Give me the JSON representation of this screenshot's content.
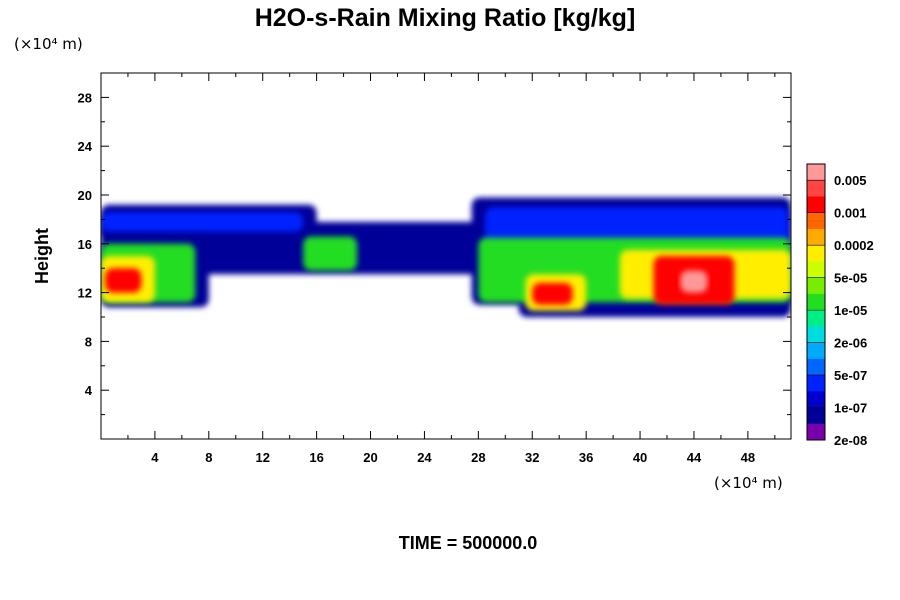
{
  "chart_data": {
    "type": "heatmap",
    "title": "H2O-s-Rain Mixing Ratio [kg/kg]",
    "xlabel": "",
    "ylabel": "Height",
    "x_unit": "(×10⁴ m)",
    "y_unit": "(×10⁴ m)",
    "xlim": [
      0,
      51.2
    ],
    "ylim": [
      0,
      30
    ],
    "x_ticks": [
      4,
      8,
      12,
      16,
      20,
      24,
      28,
      32,
      36,
      40,
      44,
      48
    ],
    "y_ticks": [
      4,
      8,
      12,
      16,
      20,
      24,
      28
    ],
    "grid": false,
    "colorbar": {
      "labels": [
        "0.005",
        "0.001",
        "0.0002",
        "5e-05",
        "1e-05",
        "2e-06",
        "5e-07",
        "1e-07",
        "2e-08"
      ],
      "colors_top_to_bottom": [
        "#ff9999",
        "#ff4444",
        "#ff0000",
        "#ff6600",
        "#ffaa00",
        "#ffee00",
        "#ccff00",
        "#77ee00",
        "#22dd22",
        "#00ee88",
        "#00dddd",
        "#00aaff",
        "#0066ff",
        "#0022ff",
        "#0000cc",
        "#000099",
        "#7700aa"
      ]
    },
    "field_regions": [
      {
        "level": 1,
        "x0": 0.0,
        "x1": 16.0,
        "y0": 16.5,
        "y1": 19.2
      },
      {
        "level": 1,
        "x0": 0.0,
        "x1": 8.0,
        "y0": 10.8,
        "y1": 17.5
      },
      {
        "level": 1,
        "x0": 5.5,
        "x1": 30.0,
        "y0": 13.5,
        "y1": 17.8
      },
      {
        "level": 1,
        "x0": 27.5,
        "x1": 51.2,
        "y0": 11.0,
        "y1": 19.8
      },
      {
        "level": 1,
        "x0": 31.0,
        "x1": 51.2,
        "y0": 10.0,
        "y1": 13.0
      },
      {
        "level": 3,
        "x0": 0.0,
        "x1": 15.0,
        "y0": 17.0,
        "y1": 18.6
      },
      {
        "level": 3,
        "x0": 28.5,
        "x1": 51.0,
        "y0": 15.5,
        "y1": 19.0
      },
      {
        "level": 8,
        "x0": 0.0,
        "x1": 7.0,
        "y0": 11.2,
        "y1": 16.0
      },
      {
        "level": 8,
        "x0": 15.0,
        "x1": 19.0,
        "y0": 13.8,
        "y1": 16.6
      },
      {
        "level": 8,
        "x0": 28.0,
        "x1": 51.2,
        "y0": 11.2,
        "y1": 16.5
      },
      {
        "level": 11,
        "x0": 38.5,
        "x1": 51.2,
        "y0": 11.5,
        "y1": 15.5
      },
      {
        "level": 11,
        "x0": 31.5,
        "x1": 36.0,
        "y0": 10.5,
        "y1": 13.5
      },
      {
        "level": 11,
        "x0": 0.0,
        "x1": 4.0,
        "y0": 11.2,
        "y1": 15.0
      },
      {
        "level": 14,
        "x0": 41.0,
        "x1": 47.0,
        "y0": 11.0,
        "y1": 15.0
      },
      {
        "level": 14,
        "x0": 32.0,
        "x1": 35.0,
        "y0": 11.0,
        "y1": 12.8
      },
      {
        "level": 14,
        "x0": 0.3,
        "x1": 3.0,
        "y0": 12.0,
        "y1": 14.0
      },
      {
        "level": 16,
        "x0": 43.0,
        "x1": 45.0,
        "y0": 12.0,
        "y1": 13.8
      }
    ]
  },
  "footer": {
    "time_label": "TIME = 500000.0"
  }
}
